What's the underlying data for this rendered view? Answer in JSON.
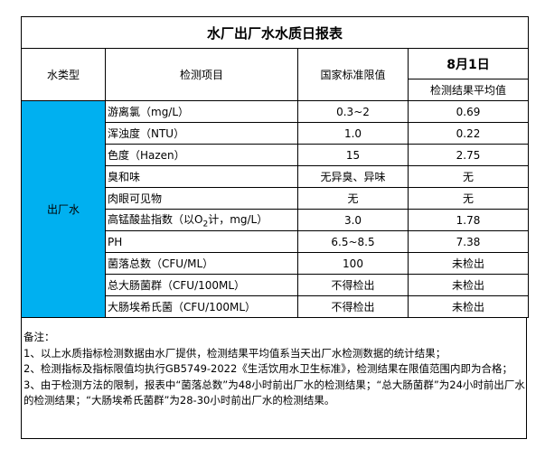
{
  "title": "水厂出厂水水质日报表",
  "headers": {
    "type": "水类型",
    "item": "检测项目",
    "standard": "国家标准限值",
    "date": "8月1日",
    "result": "检测结果平均值"
  },
  "water_type": "出厂水",
  "type_color": "#00B0F0",
  "rows": [
    {
      "item": "游离氯（mg/L）",
      "standard": "0.3~2",
      "result": "0.69"
    },
    {
      "item": "浑浊度（NTU）",
      "standard": "1.0",
      "result": "0.22"
    },
    {
      "item": "色度（Hazen）",
      "standard": "15",
      "result": "2.75"
    },
    {
      "item": "臭和味",
      "standard": "无异臭、异味",
      "result": "无"
    },
    {
      "item": "肉眼可见物",
      "standard": "无",
      "result": "无"
    },
    {
      "item_pre": "高锰酸盐指数（以O",
      "item_sub": "2",
      "item_post": "计，mg/L）",
      "standard": "3.0",
      "result": "1.78"
    },
    {
      "item": "PH",
      "standard": "6.5~8.5",
      "result": "7.38"
    },
    {
      "item": "菌落总数（CFU/ML）",
      "standard": "100",
      "result": "未检出"
    },
    {
      "item": "总大肠菌群（CFU/100ML）",
      "standard": "不得检出",
      "result": "未检出"
    },
    {
      "item": "大肠埃希氏菌（CFU/100ML）",
      "standard": "不得检出",
      "result": "未检出"
    }
  ],
  "notes": {
    "heading": "备注：",
    "lines": [
      "1、以上水质指标检测数据由水厂提供，检测结果平均值系当天出厂水检测数据的统计结果；",
      "2、检测指标及指标限值均执行GB5749-2022《生活饮用水卫生标准》，检测结果在限值范围内即为合格；",
      "3、由于检测方法的限制，报表中“菌落总数”为48小时前出厂水的检测结果；“总大肠菌群”为24小时前出厂水的检测结果；“大肠埃希氏菌群”为28-30小时前出厂水的检测结果。"
    ]
  }
}
